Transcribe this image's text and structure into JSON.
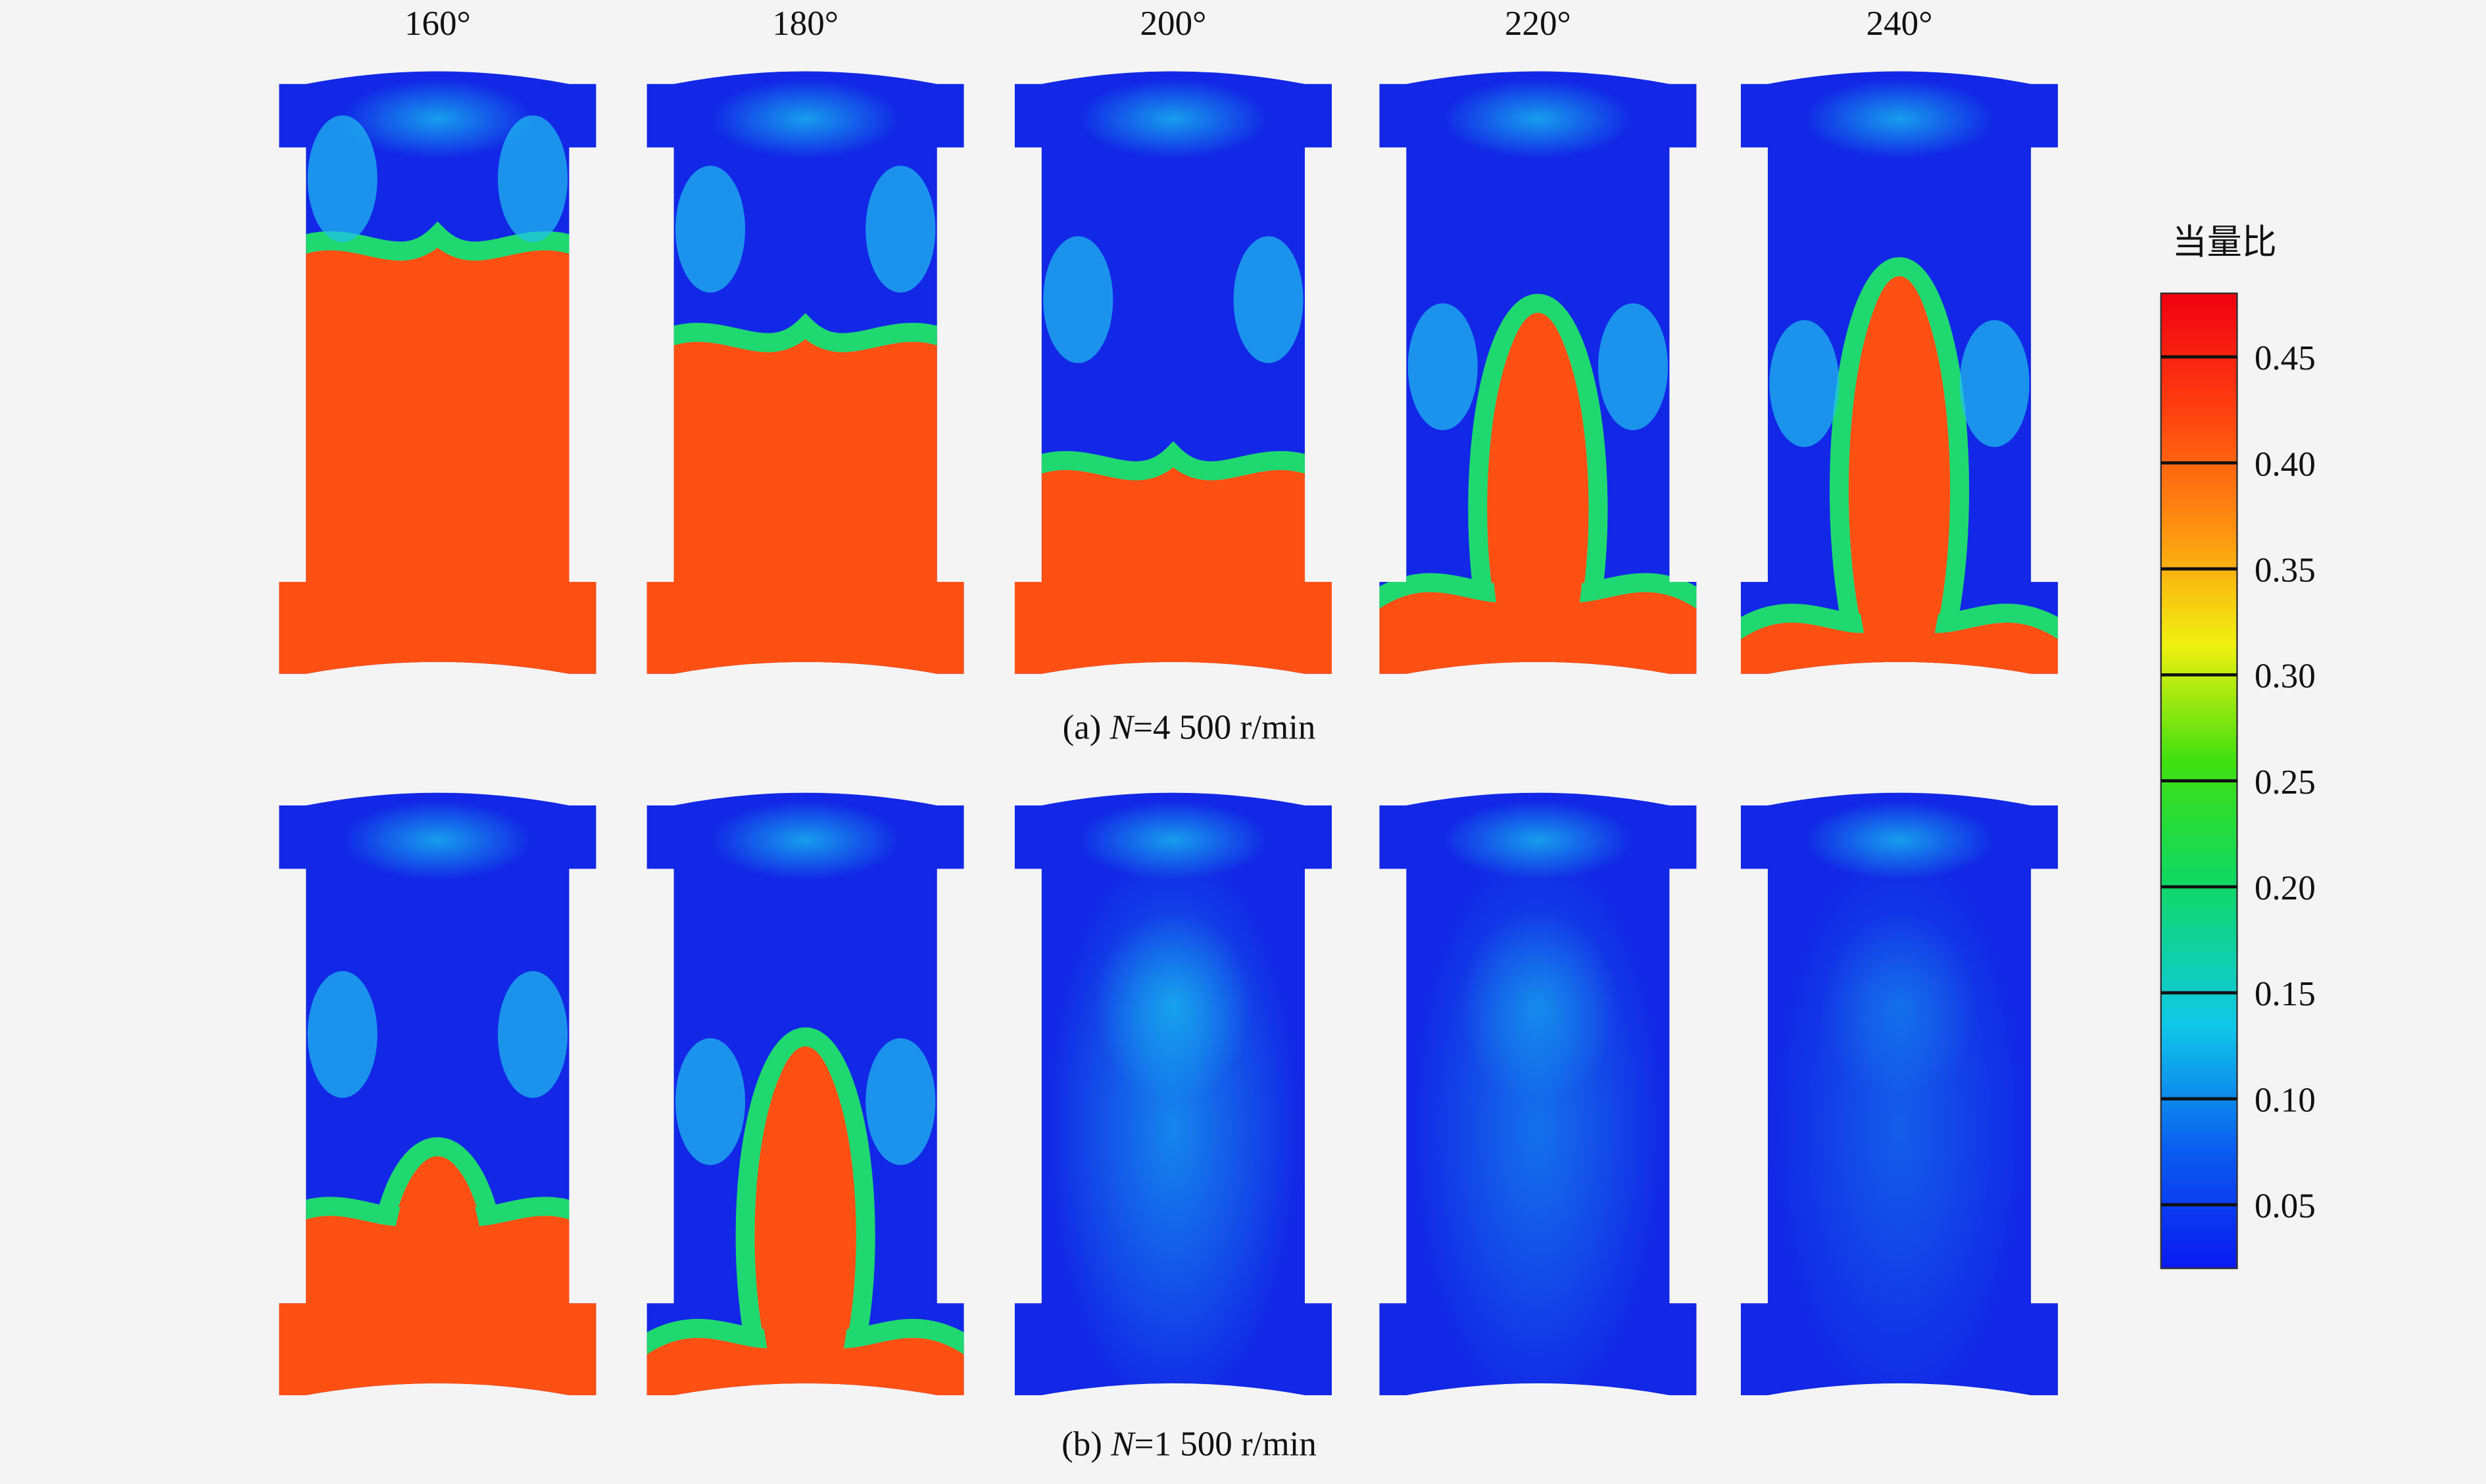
{
  "chart_data": {
    "type": "contour",
    "columns": [
      "160°",
      "180°",
      "200°",
      "220°",
      "240°"
    ],
    "rows": [
      {
        "caption": [
          "(a) ",
          "N",
          "=4 500 r/min"
        ]
      },
      {
        "caption": [
          "(b) ",
          "N",
          "=1 500 r/min"
        ]
      }
    ],
    "colorbar": {
      "title": "当量比",
      "range": [
        0.02,
        0.48
      ],
      "ticks": [
        0.05,
        {
          "value": 0.1,
          "label": "0.10"
        },
        0.15,
        {
          "value": 0.2,
          "label": "0.20"
        },
        0.25,
        {
          "value": 0.3,
          "label": "0.30"
        },
        0.35,
        {
          "value": 0.4,
          "label": "0.40"
        },
        0.45
      ]
    }
  }
}
